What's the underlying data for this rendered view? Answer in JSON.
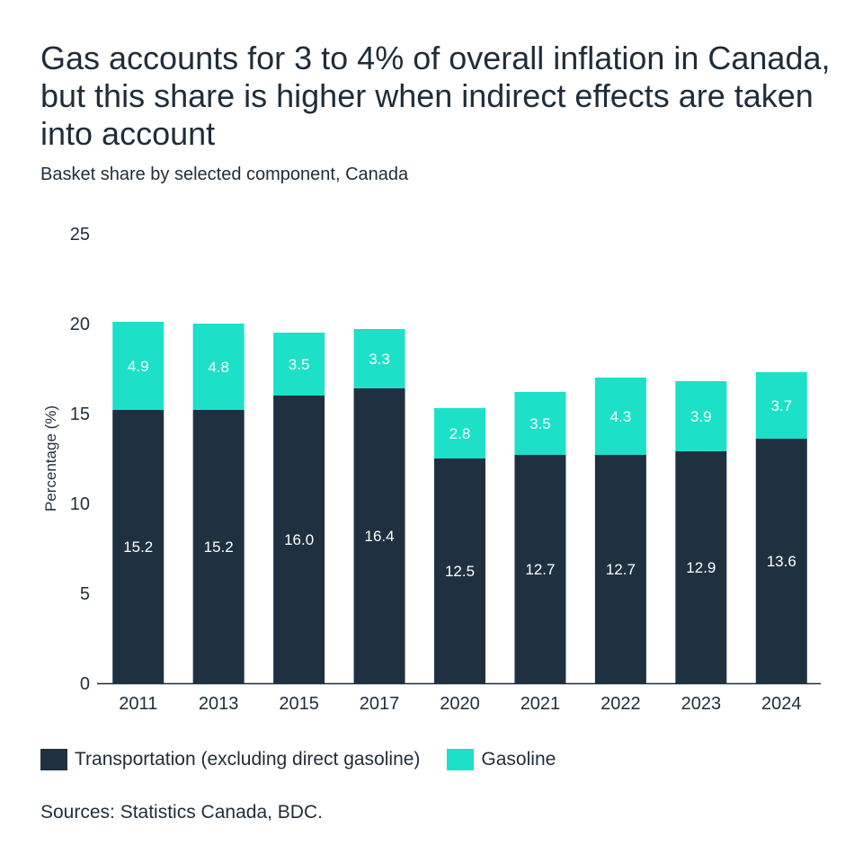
{
  "title": "Gas accounts for 3 to 4% of overall inflation in Canada, but this share is higher when indirect effects are taken into account",
  "subtitle": "Basket share by selected component, Canada",
  "source": "Sources: Statistics Canada, BDC.",
  "colors": {
    "transport": "#1f3140",
    "gasoline": "#1de0c9",
    "axis": "#1f2d3a"
  },
  "chart_data": {
    "type": "bar",
    "stacked": true,
    "categories": [
      "2011",
      "2013",
      "2015",
      "2017",
      "2020",
      "2021",
      "2022",
      "2023",
      "2024"
    ],
    "series": [
      {
        "name": "Transportation (excluding direct gasoline)",
        "values": [
          15.2,
          15.2,
          16.0,
          16.4,
          12.5,
          12.7,
          12.7,
          12.9,
          13.6
        ],
        "labels": [
          "15.2",
          "15.2",
          "16.0",
          "16.4",
          "12.5",
          "12.7",
          "12.7",
          "12.9",
          "13.6"
        ]
      },
      {
        "name": "Gasoline",
        "values": [
          4.9,
          4.8,
          3.5,
          3.3,
          2.8,
          3.5,
          4.3,
          3.9,
          3.7
        ],
        "labels": [
          "4.9",
          "4.8",
          "3.5",
          "3.3",
          "2.8",
          "3.5",
          "4.3",
          "3.9",
          "3.7"
        ]
      }
    ],
    "ylabel": "Percentage (%)",
    "xlabel": "",
    "ylim": [
      0,
      25
    ],
    "yticks": [
      "0",
      "5",
      "10",
      "15",
      "20",
      "25"
    ],
    "grid": false,
    "legend_position": "bottom-left"
  }
}
